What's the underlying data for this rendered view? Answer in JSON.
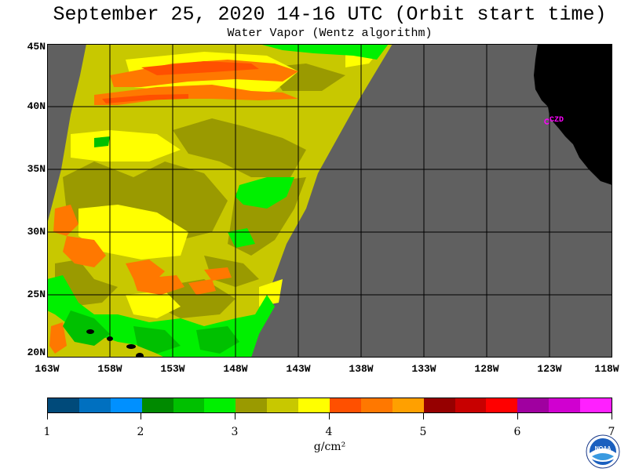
{
  "header": {
    "title": "September 25, 2020  14-16 UTC  (Orbit start time)",
    "subtitle": "Water Vapor (Wentz algorithm)"
  },
  "map": {
    "lat_labels": [
      "45N",
      "40N",
      "35N",
      "30N",
      "25N",
      "20N"
    ],
    "lon_labels": [
      "163W",
      "158W",
      "153W",
      "148W",
      "143W",
      "138W",
      "133W",
      "128W",
      "123W",
      "118W"
    ],
    "station_label": "CZD",
    "colors": {
      "no_data": "#606060",
      "land": "#000000",
      "grid": "#000000",
      "station": "#ff00ff"
    }
  },
  "colorbar": {
    "units": "g/cm²",
    "tick_labels": [
      "1",
      "2",
      "3",
      "4",
      "5",
      "6",
      "7"
    ],
    "colors": [
      "#004a7a",
      "#0070c0",
      "#0090ff",
      "#008a00",
      "#00c000",
      "#00f000",
      "#9a9a00",
      "#c8c800",
      "#ffff00",
      "#ff5000",
      "#ff7800",
      "#ffa000",
      "#960000",
      "#c80000",
      "#ff0000",
      "#a000a0",
      "#d000d0",
      "#ff20ff"
    ]
  },
  "logo": {
    "name": "noaa-logo-icon"
  }
}
